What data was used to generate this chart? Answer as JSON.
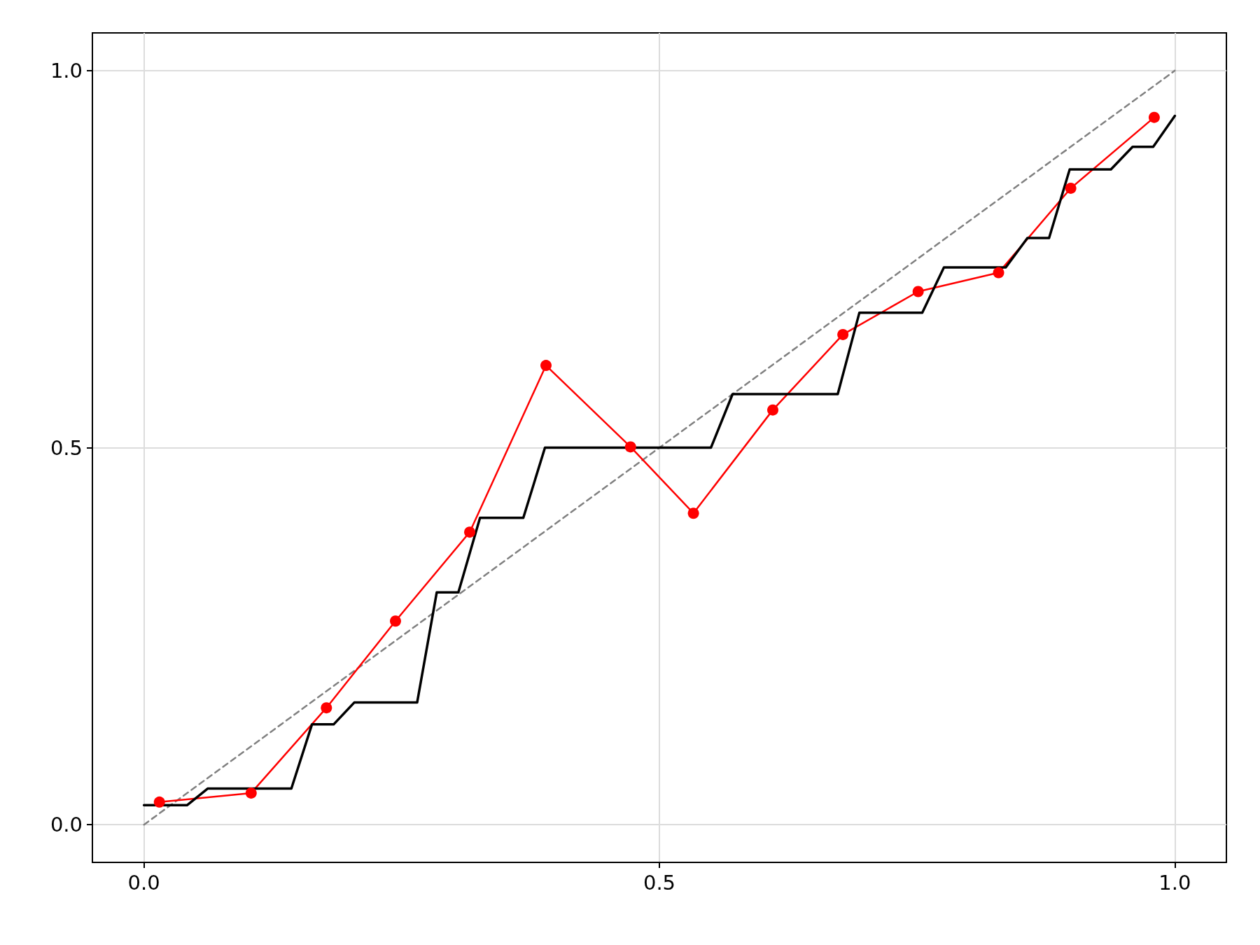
{
  "chart_data": {
    "type": "line",
    "xlim": [
      -0.05,
      1.05
    ],
    "ylim": [
      -0.05,
      1.05
    ],
    "xticks": [
      {
        "value": 0,
        "label": "0.0"
      },
      {
        "value": 0.5,
        "label": "0.5"
      },
      {
        "value": 1,
        "label": "1.0"
      }
    ],
    "yticks": [
      {
        "value": 0,
        "label": "0.0"
      },
      {
        "value": 0.5,
        "label": "0.5"
      },
      {
        "value": 1,
        "label": "1.0"
      }
    ],
    "grid": true,
    "series": [
      {
        "color": "#808080",
        "line_style": "dashed",
        "marker": "none",
        "x": [
          0,
          1
        ],
        "values": [
          0,
          1
        ]
      },
      {
        "color": "#ff0000",
        "line_style": "solid",
        "marker": "circle",
        "x": [
          0.015,
          0.104,
          0.177,
          0.244,
          0.316,
          0.39,
          0.472,
          0.533,
          0.61,
          0.678,
          0.751,
          0.829,
          0.899,
          0.98
        ],
        "values": [
          0.03,
          0.042,
          0.155,
          0.27,
          0.388,
          0.609,
          0.501,
          0.413,
          0.55,
          0.65,
          0.707,
          0.732,
          0.844,
          0.938
        ]
      },
      {
        "color": "#000000",
        "line_style": "solid",
        "marker": "none",
        "x": [
          0,
          0.042,
          0.062,
          0.143,
          0.163,
          0.184,
          0.204,
          0.265,
          0.284,
          0.305,
          0.326,
          0.368,
          0.389,
          0.55,
          0.571,
          0.673,
          0.694,
          0.755,
          0.776,
          0.836,
          0.857,
          0.878,
          0.898,
          0.938,
          0.959,
          0.979,
          1.0
        ],
        "values": [
          0.026,
          0.026,
          0.048,
          0.048,
          0.133,
          0.133,
          0.162,
          0.162,
          0.308,
          0.308,
          0.407,
          0.407,
          0.5,
          0.5,
          0.571,
          0.571,
          0.679,
          0.679,
          0.739,
          0.739,
          0.778,
          0.778,
          0.869,
          0.869,
          0.899,
          0.899,
          0.94
        ]
      }
    ]
  }
}
